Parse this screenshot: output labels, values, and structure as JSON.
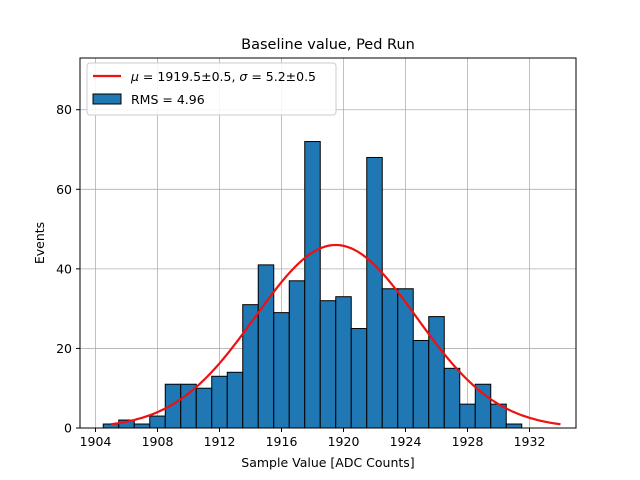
{
  "chart_data": {
    "type": "bar",
    "title": "Baseline value, Ped Run",
    "xlabel": "Sample Value [ADC Counts]",
    "ylabel": "Events",
    "xlim": [
      1903.0,
      1935.0
    ],
    "ylim": [
      0,
      93
    ],
    "grid": true,
    "x_ticks": [
      1904,
      1908,
      1912,
      1916,
      1920,
      1924,
      1928,
      1932
    ],
    "y_ticks": [
      0,
      20,
      40,
      60,
      80
    ],
    "bin_width": 1.0,
    "bins": [
      {
        "x": 1905,
        "value": 1
      },
      {
        "x": 1906,
        "value": 2
      },
      {
        "x": 1907,
        "value": 1
      },
      {
        "x": 1908,
        "value": 3
      },
      {
        "x": 1909,
        "value": 11
      },
      {
        "x": 1910,
        "value": 11
      },
      {
        "x": 1911,
        "value": 10
      },
      {
        "x": 1912,
        "value": 13
      },
      {
        "x": 1913,
        "value": 14
      },
      {
        "x": 1914,
        "value": 31
      },
      {
        "x": 1915,
        "value": 41
      },
      {
        "x": 1916,
        "value": 29
      },
      {
        "x": 1917,
        "value": 37
      },
      {
        "x": 1918,
        "value": 72
      },
      {
        "x": 1919,
        "value": 32
      },
      {
        "x": 1920,
        "value": 33
      },
      {
        "x": 1921,
        "value": 25
      },
      {
        "x": 1922,
        "value": 68
      },
      {
        "x": 1923,
        "value": 35
      },
      {
        "x": 1924,
        "value": 35
      },
      {
        "x": 1925,
        "value": 22
      },
      {
        "x": 1926,
        "value": 28
      },
      {
        "x": 1927,
        "value": 15
      },
      {
        "x": 1928,
        "value": 6
      },
      {
        "x": 1929,
        "value": 11
      },
      {
        "x": 1930,
        "value": 6
      },
      {
        "x": 1931,
        "value": 1
      }
    ],
    "fit": {
      "type": "gaussian",
      "mu": 1919.5,
      "sigma": 5.2,
      "amplitude": 46,
      "x_range": [
        1905.0,
        1934.0
      ]
    },
    "legend": {
      "location": "upper left",
      "fit_label_prefix": "μ = ",
      "fit_label_mu": "1919.5±0.5",
      "fit_label_sep": ", ",
      "fit_label_sigma_symbol": "σ",
      "fit_label_eq": " = ",
      "fit_label_sigma": "5.2±0.5",
      "hist_label": "RMS = 4.96"
    },
    "colors": {
      "bar": "#1f77b4",
      "bar_edge": "#000000",
      "fit_line": "#ee1111",
      "grid": "#b0b0b0"
    }
  }
}
